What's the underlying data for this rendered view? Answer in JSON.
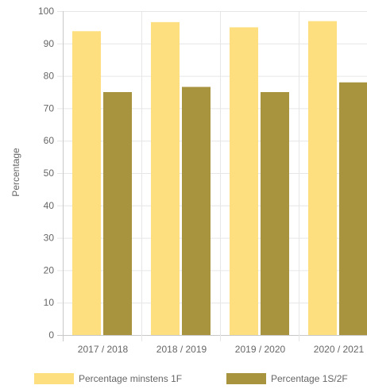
{
  "chart_data": {
    "type": "bar",
    "categories": [
      "2017 / 2018",
      "2018 / 2019",
      "2019 / 2020",
      "2020 / 2021"
    ],
    "series": [
      {
        "name": "Percentage minstens 1F",
        "values": [
          93.8,
          96.6,
          95.0,
          96.9
        ],
        "color": "#fddf7f"
      },
      {
        "name": "Percentage 1S/2F",
        "values": [
          75.0,
          76.6,
          75.0,
          78.0
        ],
        "color": "#a8943f"
      }
    ],
    "title": "",
    "xlabel": "",
    "ylabel": "Percentage",
    "ylim": [
      0,
      100
    ],
    "yticks": [
      0,
      10,
      20,
      30,
      40,
      50,
      60,
      70,
      80,
      90,
      100
    ],
    "grid": true,
    "legend_position": "bottom"
  }
}
